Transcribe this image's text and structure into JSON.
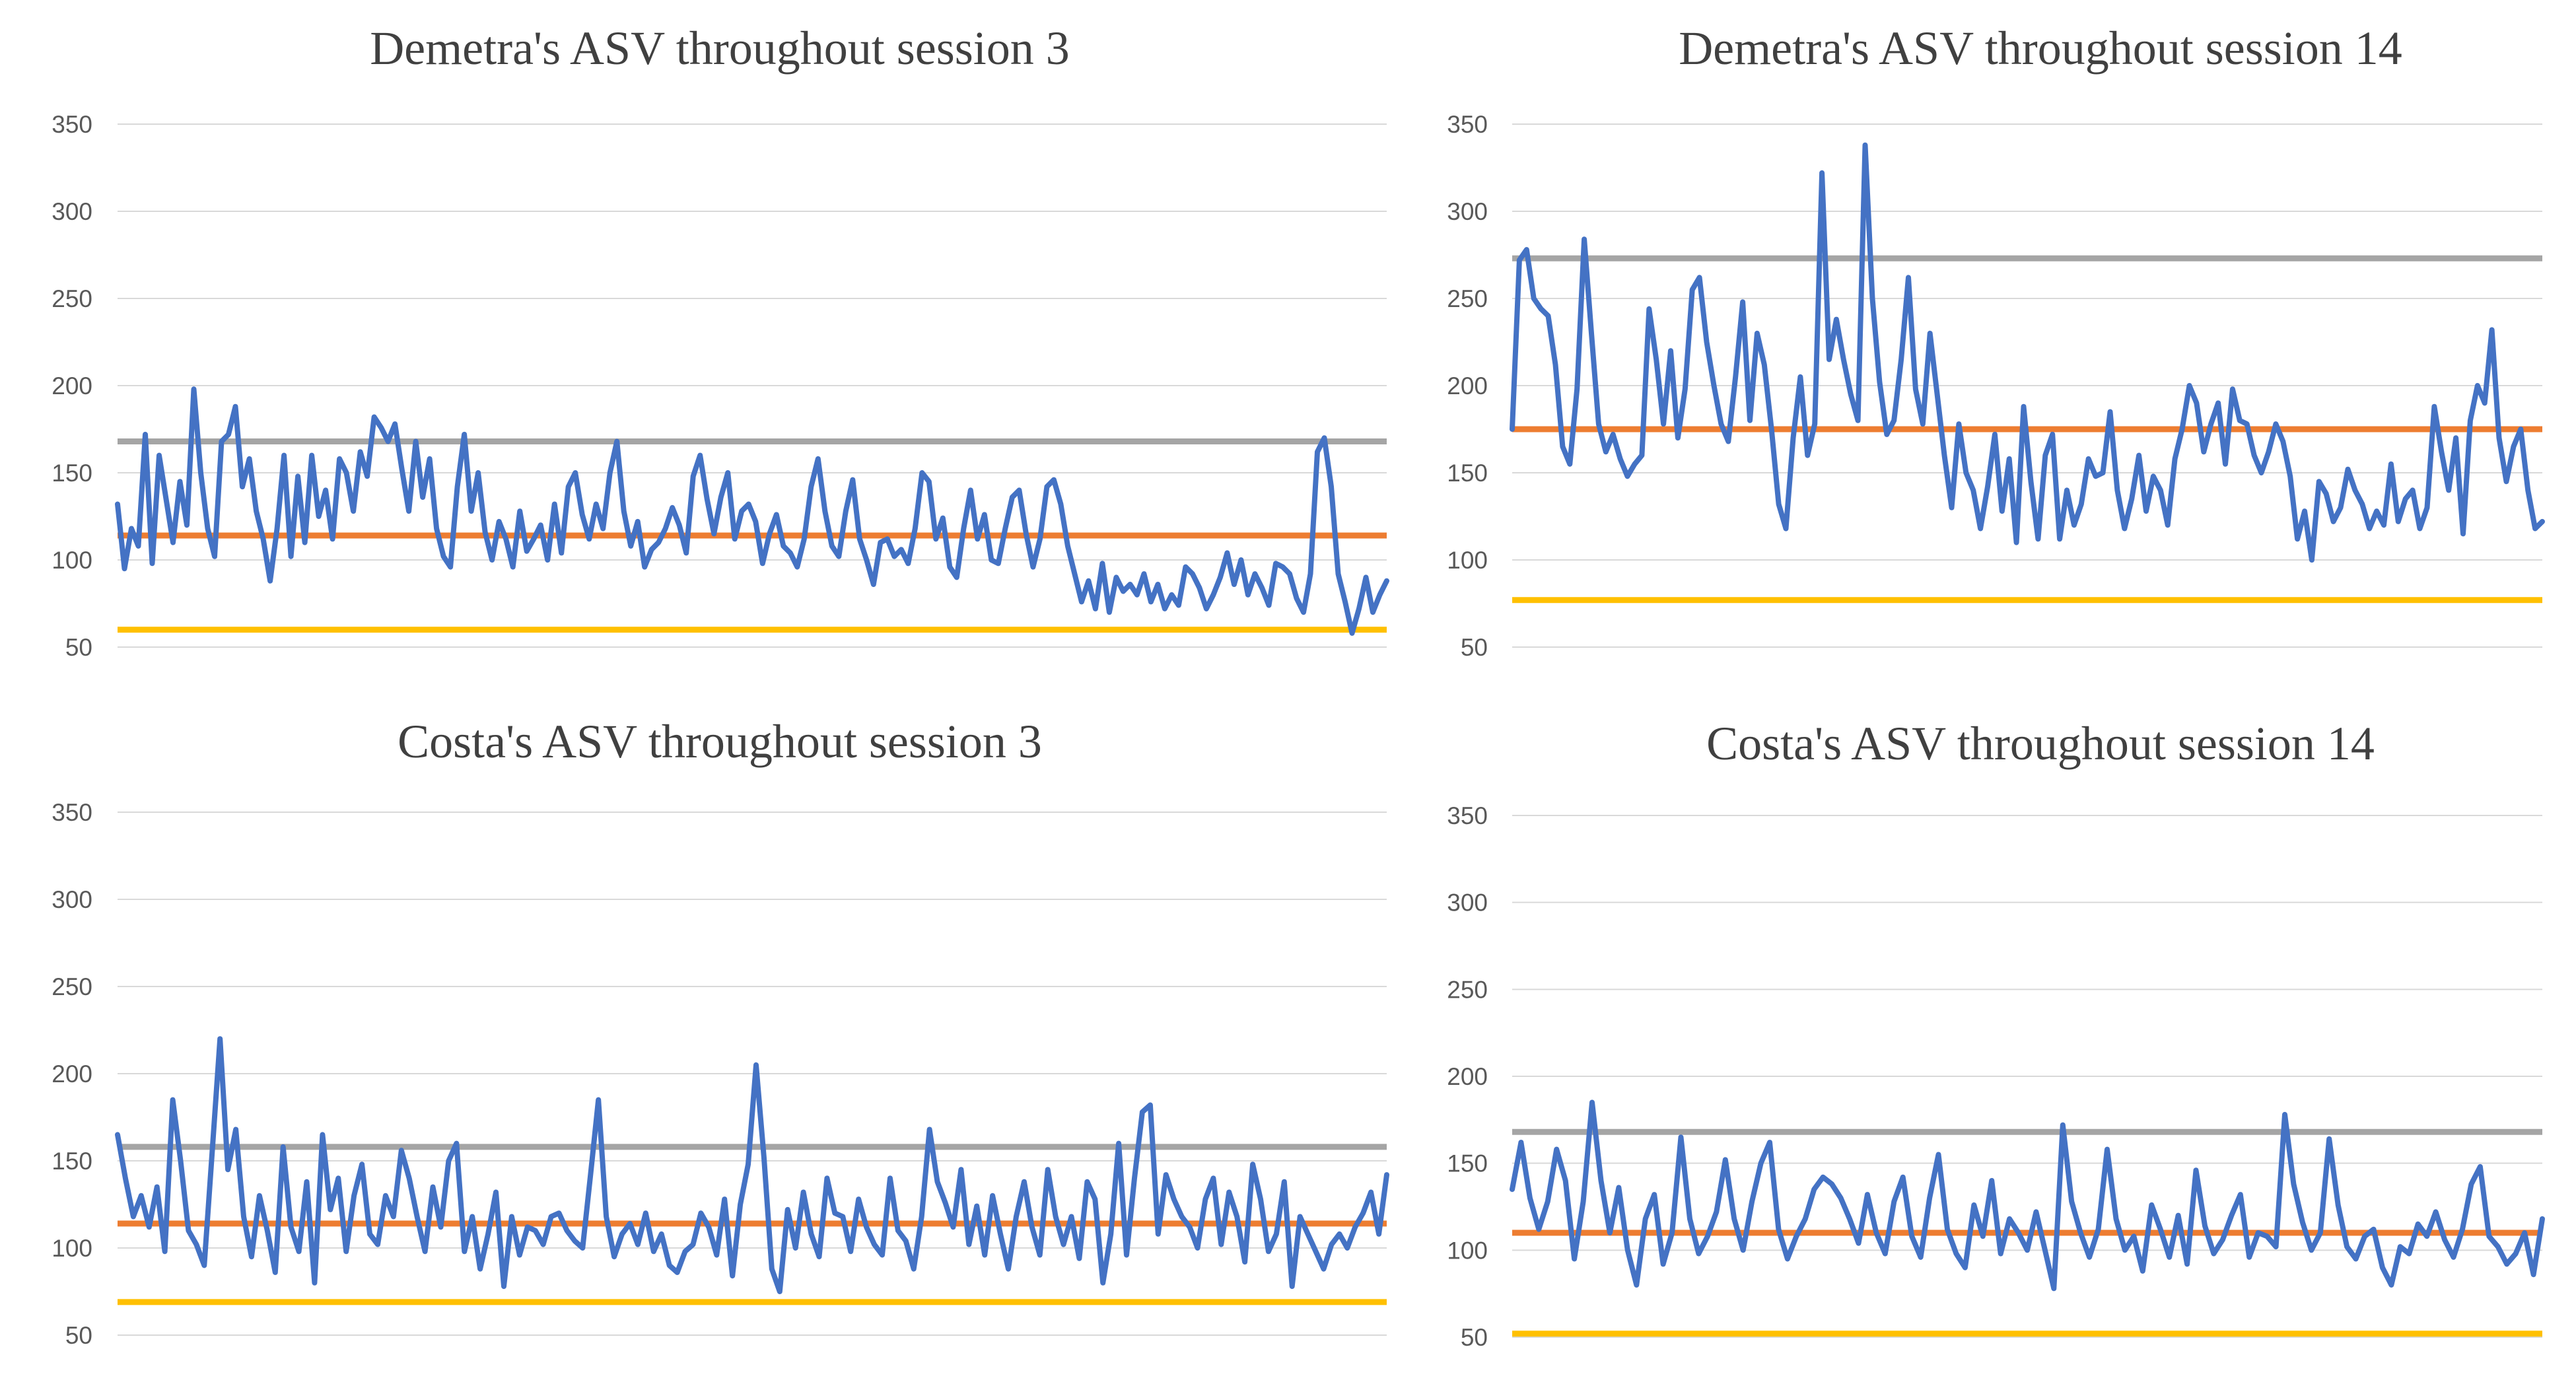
{
  "chart_data": [
    {
      "type": "line",
      "title": "Demetra's ASV throughout session 3",
      "ylim": [
        50,
        350
      ],
      "yticks": [
        350,
        300,
        250,
        200,
        150,
        100,
        50
      ],
      "grid": true,
      "reference_lines": [
        {
          "name": "upper",
          "value": 168,
          "color": "#A5A5A5"
        },
        {
          "name": "mean",
          "value": 114,
          "color": "#ED7D31"
        },
        {
          "name": "lower",
          "value": 60,
          "color": "#FFC000"
        }
      ],
      "series": [
        {
          "name": "ASV",
          "color": "#4472C4",
          "values": [
            132,
            95,
            118,
            108,
            172,
            98,
            160,
            135,
            110,
            145,
            120,
            198,
            150,
            118,
            102,
            168,
            172,
            188,
            142,
            158,
            128,
            112,
            88,
            118,
            160,
            102,
            148,
            110,
            160,
            125,
            140,
            112,
            158,
            150,
            128,
            162,
            148,
            182,
            176,
            168,
            178,
            152,
            128,
            168,
            136,
            158,
            118,
            102,
            96,
            142,
            172,
            128,
            150,
            116,
            100,
            122,
            112,
            96,
            128,
            105,
            112,
            120,
            100,
            132,
            104,
            142,
            150,
            126,
            112,
            132,
            118,
            150,
            168,
            128,
            108,
            122,
            96,
            106,
            110,
            118,
            130,
            120,
            104,
            148,
            160,
            135,
            115,
            136,
            150,
            112,
            128,
            132,
            122,
            98,
            115,
            126,
            108,
            104,
            96,
            112,
            142,
            158,
            128,
            108,
            102,
            128,
            146,
            112,
            100,
            86,
            110,
            112,
            102,
            106,
            98,
            118,
            150,
            145,
            112,
            124,
            96,
            90,
            118,
            140,
            112,
            126,
            100,
            98,
            118,
            136,
            140,
            115,
            96,
            112,
            142,
            146,
            132,
            108,
            92,
            76,
            88,
            72,
            98,
            70,
            90,
            82,
            86,
            80,
            92,
            76,
            86,
            72,
            80,
            74,
            96,
            92,
            84,
            72,
            80,
            90,
            104,
            86,
            100,
            80,
            92,
            84,
            74,
            98,
            96,
            92,
            78,
            70,
            92,
            162,
            170,
            142,
            92,
            76,
            58,
            72,
            90,
            70,
            80,
            88
          ]
        }
      ]
    },
    {
      "type": "line",
      "title": "Demetra's ASV throughout session 14",
      "ylim": [
        50,
        350
      ],
      "yticks": [
        350,
        300,
        250,
        200,
        150,
        100,
        50
      ],
      "grid": true,
      "reference_lines": [
        {
          "name": "upper",
          "value": 273,
          "color": "#A5A5A5"
        },
        {
          "name": "mean",
          "value": 175,
          "color": "#ED7D31"
        },
        {
          "name": "lower",
          "value": 77,
          "color": "#FFC000"
        }
      ],
      "series": [
        {
          "name": "ASV",
          "color": "#4472C4",
          "values": [
            175,
            272,
            278,
            250,
            244,
            240,
            212,
            165,
            155,
            198,
            284,
            230,
            178,
            162,
            172,
            158,
            148,
            155,
            160,
            244,
            215,
            178,
            220,
            170,
            198,
            255,
            262,
            225,
            200,
            178,
            168,
            205,
            248,
            180,
            230,
            212,
            175,
            132,
            118,
            170,
            205,
            160,
            178,
            322,
            215,
            238,
            215,
            195,
            180,
            338,
            250,
            202,
            172,
            180,
            215,
            262,
            198,
            178,
            230,
            195,
            160,
            130,
            178,
            150,
            140,
            118,
            142,
            172,
            128,
            158,
            110,
            188,
            145,
            112,
            160,
            172,
            112,
            140,
            120,
            132,
            158,
            148,
            150,
            185,
            140,
            118,
            135,
            160,
            128,
            148,
            140,
            120,
            158,
            175,
            200,
            190,
            162,
            178,
            190,
            155,
            198,
            180,
            178,
            160,
            150,
            162,
            178,
            168,
            148,
            112,
            128,
            100,
            145,
            138,
            122,
            130,
            152,
            140,
            132,
            118,
            128,
            120,
            155,
            122,
            135,
            140,
            118,
            130,
            188,
            162,
            140,
            170,
            115,
            180,
            200,
            190,
            232,
            170,
            145,
            165,
            175,
            140,
            118,
            122
          ]
        }
      ]
    },
    {
      "type": "line",
      "title": "Costa's ASV throughout session 3",
      "ylim": [
        50,
        350
      ],
      "yticks": [
        350,
        300,
        250,
        200,
        150,
        100,
        50
      ],
      "grid": true,
      "reference_lines": [
        {
          "name": "upper",
          "value": 158,
          "color": "#A5A5A5"
        },
        {
          "name": "mean",
          "value": 114,
          "color": "#ED7D31"
        },
        {
          "name": "lower",
          "value": 69,
          "color": "#FFC000"
        }
      ],
      "series": [
        {
          "name": "ASV",
          "color": "#4472C4",
          "values": [
            165,
            140,
            118,
            130,
            112,
            135,
            98,
            185,
            150,
            110,
            102,
            90,
            155,
            220,
            145,
            168,
            118,
            95,
            130,
            110,
            86,
            158,
            112,
            98,
            138,
            80,
            165,
            122,
            140,
            98,
            130,
            148,
            108,
            102,
            130,
            118,
            156,
            140,
            118,
            98,
            135,
            112,
            150,
            160,
            98,
            118,
            88,
            108,
            132,
            78,
            118,
            96,
            112,
            110,
            102,
            118,
            120,
            110,
            104,
            100,
            142,
            185,
            118,
            95,
            108,
            114,
            102,
            120,
            98,
            108,
            90,
            86,
            98,
            102,
            120,
            112,
            96,
            128,
            84,
            125,
            148,
            205,
            152,
            88,
            75,
            122,
            100,
            132,
            108,
            95,
            140,
            120,
            118,
            98,
            128,
            112,
            102,
            96,
            140,
            110,
            104,
            88,
            118,
            168,
            138,
            126,
            112,
            145,
            102,
            124,
            96,
            130,
            108,
            88,
            118,
            138,
            112,
            96,
            145,
            118,
            102,
            118,
            94,
            138,
            128,
            80,
            108,
            160,
            96,
            140,
            178,
            182,
            108,
            142,
            128,
            118,
            112,
            100,
            128,
            140,
            102,
            132,
            118,
            92,
            148,
            128,
            98,
            108,
            138,
            78,
            118,
            108,
            98,
            88,
            102,
            108,
            100,
            112,
            120,
            132,
            108,
            142
          ]
        }
      ]
    },
    {
      "type": "line",
      "title": "Costa's ASV throughout session 14",
      "ylim": [
        50,
        350
      ],
      "yticks": [
        350,
        300,
        250,
        200,
        150,
        100,
        50
      ],
      "grid": true,
      "reference_lines": [
        {
          "name": "upper",
          "value": 168,
          "color": "#A5A5A5"
        },
        {
          "name": "mean",
          "value": 110,
          "color": "#ED7D31"
        },
        {
          "name": "lower",
          "value": 52,
          "color": "#FFC000"
        }
      ],
      "series": [
        {
          "name": "ASV",
          "color": "#4472C4",
          "values": [
            135,
            162,
            130,
            112,
            128,
            158,
            140,
            95,
            128,
            185,
            140,
            110,
            136,
            100,
            80,
            118,
            132,
            92,
            110,
            165,
            118,
            98,
            108,
            122,
            152,
            118,
            100,
            128,
            150,
            162,
            112,
            95,
            108,
            118,
            135,
            142,
            138,
            130,
            118,
            104,
            132,
            110,
            98,
            128,
            142,
            108,
            96,
            130,
            155,
            112,
            98,
            90,
            126,
            108,
            140,
            98,
            118,
            110,
            100,
            122,
            100,
            78,
            172,
            128,
            110,
            96,
            112,
            158,
            118,
            100,
            108,
            88,
            126,
            112,
            96,
            120,
            92,
            146,
            114,
            98,
            106,
            120,
            132,
            96,
            110,
            108,
            102,
            178,
            138,
            116,
            100,
            110,
            164,
            126,
            102,
            95,
            108,
            112,
            90,
            80,
            102,
            98,
            115,
            108,
            122,
            106,
            96,
            112,
            138,
            148,
            108,
            102,
            92,
            98,
            110,
            86,
            118
          ]
        }
      ]
    }
  ]
}
